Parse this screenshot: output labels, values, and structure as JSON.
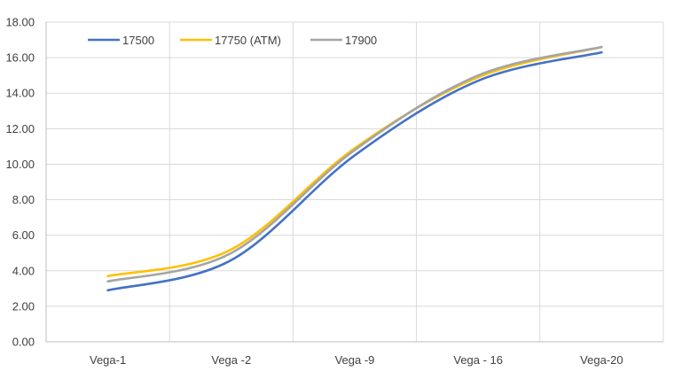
{
  "chart_data": {
    "type": "line",
    "title": "",
    "xlabel": "",
    "ylabel": "",
    "categories": [
      "Vega-1",
      "Vega -2",
      "Vega -9",
      "Vega - 16",
      "Vega-20"
    ],
    "ylim": [
      0,
      18
    ],
    "yticks": [
      "0.00",
      "2.00",
      "4.00",
      "6.00",
      "8.00",
      "10.00",
      "12.00",
      "14.00",
      "16.00",
      "18.00"
    ],
    "grid": true,
    "legend_position": "top-left",
    "series": [
      {
        "name": "17500",
        "color": "#4472c4",
        "values": [
          2.9,
          4.6,
          10.5,
          14.7,
          16.3
        ]
      },
      {
        "name": "17750 (ATM)",
        "color": "#ffc000",
        "values": [
          3.7,
          5.2,
          10.9,
          14.9,
          16.6
        ]
      },
      {
        "name": "17900",
        "color": "#a5a5a5",
        "values": [
          3.4,
          5.0,
          10.8,
          15.0,
          16.6
        ]
      }
    ]
  }
}
